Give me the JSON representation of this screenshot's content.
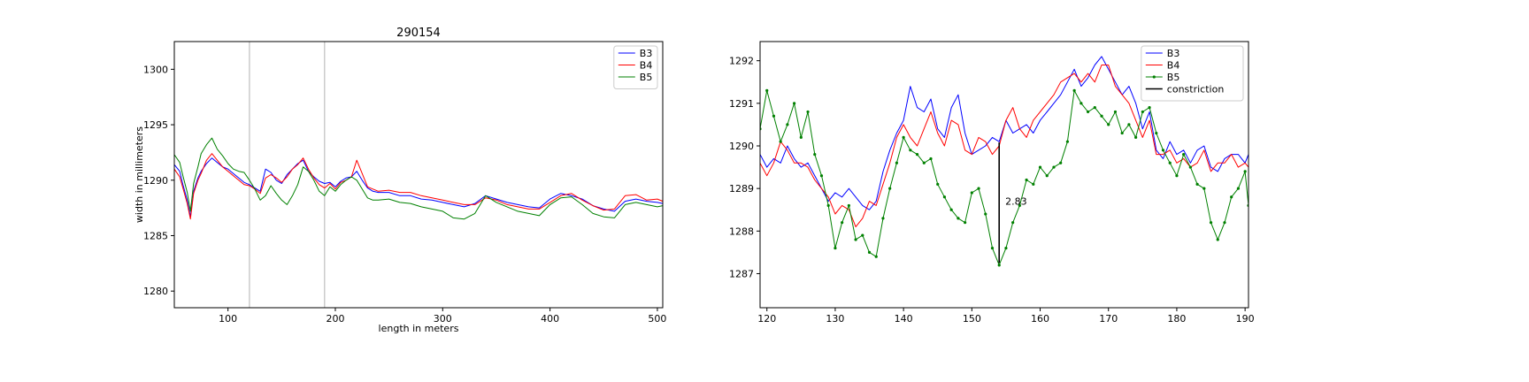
{
  "figure": {
    "background": "#ffffff"
  },
  "chart_data": [
    {
      "type": "line",
      "title": "290154",
      "xlabel": "length in meters",
      "ylabel": "width in millimeters",
      "xlim": [
        50,
        505
      ],
      "ylim": [
        1278.5,
        1302.5
      ],
      "xticks": [
        100,
        200,
        300,
        400,
        500
      ],
      "yticks": [
        1280,
        1285,
        1290,
        1295,
        1300
      ],
      "vlines": [
        {
          "x": 120,
          "color": "#b0b0b0"
        },
        {
          "x": 190,
          "color": "#b0b0b0"
        }
      ],
      "legend": {
        "loc": "upper right"
      },
      "series": [
        {
          "name": "B3",
          "color": "#0000ff",
          "markers": false,
          "x": [
            50,
            55,
            58,
            62,
            65,
            68,
            72,
            75,
            80,
            85,
            90,
            95,
            100,
            105,
            110,
            115,
            120,
            125,
            130,
            135,
            140,
            145,
            150,
            155,
            160,
            165,
            170,
            175,
            180,
            185,
            190,
            195,
            200,
            205,
            210,
            215,
            220,
            225,
            230,
            235,
            240,
            250,
            260,
            270,
            280,
            290,
            300,
            310,
            320,
            330,
            340,
            350,
            360,
            370,
            380,
            390,
            400,
            410,
            420,
            430,
            440,
            450,
            460,
            470,
            480,
            490,
            500,
            505
          ],
          "y": [
            1291.4,
            1290.8,
            1289.6,
            1288.2,
            1286.7,
            1289.0,
            1290.2,
            1290.8,
            1291.5,
            1292.0,
            1291.6,
            1291.2,
            1291.0,
            1290.6,
            1290.2,
            1289.8,
            1289.6,
            1289.3,
            1289.0,
            1291.0,
            1290.7,
            1290.0,
            1289.7,
            1290.5,
            1291.0,
            1291.5,
            1291.8,
            1290.8,
            1290.3,
            1289.9,
            1289.7,
            1289.8,
            1289.4,
            1289.9,
            1290.2,
            1290.3,
            1290.8,
            1290.0,
            1289.3,
            1289.0,
            1288.9,
            1288.9,
            1288.6,
            1288.6,
            1288.3,
            1288.2,
            1288.0,
            1287.8,
            1287.6,
            1287.9,
            1288.6,
            1288.3,
            1288.0,
            1287.8,
            1287.6,
            1287.5,
            1288.3,
            1288.8,
            1288.6,
            1288.3,
            1287.7,
            1287.4,
            1287.2,
            1288.1,
            1288.3,
            1288.1,
            1288.0,
            1287.9
          ]
        },
        {
          "name": "B4",
          "color": "#ff0000",
          "markers": false,
          "x": [
            50,
            55,
            58,
            62,
            65,
            68,
            72,
            75,
            80,
            85,
            90,
            95,
            100,
            105,
            110,
            115,
            120,
            125,
            130,
            135,
            140,
            145,
            150,
            155,
            160,
            165,
            170,
            175,
            180,
            185,
            190,
            195,
            200,
            205,
            210,
            215,
            220,
            225,
            230,
            235,
            240,
            250,
            260,
            270,
            280,
            290,
            300,
            310,
            320,
            330,
            340,
            350,
            360,
            370,
            380,
            390,
            400,
            410,
            420,
            430,
            440,
            450,
            460,
            470,
            480,
            490,
            500,
            505
          ],
          "y": [
            1291.0,
            1290.3,
            1289.3,
            1287.9,
            1286.5,
            1288.8,
            1290.0,
            1290.6,
            1291.8,
            1292.4,
            1291.8,
            1291.2,
            1290.8,
            1290.4,
            1290.0,
            1289.6,
            1289.5,
            1289.2,
            1288.8,
            1290.2,
            1290.5,
            1290.2,
            1289.8,
            1290.3,
            1291.0,
            1291.4,
            1292.0,
            1291.0,
            1290.2,
            1289.6,
            1289.3,
            1289.7,
            1289.2,
            1289.8,
            1290.0,
            1290.3,
            1291.8,
            1290.6,
            1289.4,
            1289.2,
            1289.0,
            1289.1,
            1288.9,
            1288.9,
            1288.6,
            1288.4,
            1288.2,
            1288.0,
            1287.8,
            1287.8,
            1288.4,
            1288.2,
            1287.8,
            1287.6,
            1287.4,
            1287.4,
            1288.0,
            1288.6,
            1288.8,
            1288.2,
            1287.7,
            1287.3,
            1287.4,
            1288.6,
            1288.7,
            1288.2,
            1288.3,
            1288.1
          ]
        },
        {
          "name": "B5",
          "color": "#008000",
          "markers": false,
          "x": [
            50,
            55,
            58,
            62,
            65,
            68,
            72,
            75,
            80,
            85,
            90,
            95,
            100,
            105,
            110,
            115,
            120,
            125,
            130,
            135,
            140,
            145,
            150,
            155,
            160,
            165,
            170,
            175,
            180,
            185,
            190,
            195,
            200,
            205,
            210,
            215,
            220,
            225,
            230,
            235,
            240,
            250,
            260,
            270,
            280,
            290,
            300,
            310,
            320,
            330,
            340,
            350,
            360,
            370,
            380,
            390,
            400,
            410,
            420,
            430,
            440,
            450,
            460,
            470,
            480,
            490,
            500,
            505
          ],
          "y": [
            1292.3,
            1291.6,
            1290.4,
            1288.9,
            1287.2,
            1289.7,
            1291.2,
            1292.4,
            1293.2,
            1293.8,
            1292.8,
            1292.2,
            1291.5,
            1291.0,
            1290.8,
            1290.7,
            1290.0,
            1289.2,
            1288.2,
            1288.6,
            1289.5,
            1288.8,
            1288.2,
            1287.8,
            1288.6,
            1289.6,
            1291.2,
            1290.8,
            1290.0,
            1289.0,
            1288.6,
            1289.4,
            1289.0,
            1289.6,
            1290.0,
            1290.3,
            1290.0,
            1289.2,
            1288.4,
            1288.2,
            1288.2,
            1288.3,
            1288.0,
            1287.9,
            1287.6,
            1287.4,
            1287.2,
            1286.6,
            1286.5,
            1287.0,
            1288.6,
            1288.0,
            1287.6,
            1287.2,
            1287.0,
            1286.8,
            1287.8,
            1288.4,
            1288.5,
            1287.8,
            1287.0,
            1286.7,
            1286.6,
            1287.8,
            1288.0,
            1287.8,
            1287.6,
            1287.7
          ]
        }
      ]
    },
    {
      "type": "line",
      "title": "",
      "xlabel": "",
      "ylabel": "",
      "xlim": [
        119,
        190.5
      ],
      "ylim": [
        1286.2,
        1292.45
      ],
      "xticks": [
        120,
        130,
        140,
        150,
        160,
        170,
        180,
        190
      ],
      "yticks": [
        1287,
        1288,
        1289,
        1290,
        1291,
        1292
      ],
      "legend": {
        "loc": "upper right"
      },
      "series": [
        {
          "name": "B3",
          "color": "#0000ff",
          "markers": false,
          "x": [
            119,
            120,
            121,
            122,
            123,
            124,
            125,
            126,
            127,
            128,
            129,
            130,
            131,
            132,
            133,
            134,
            135,
            136,
            137,
            138,
            139,
            140,
            141,
            142,
            143,
            144,
            145,
            146,
            147,
            148,
            149,
            150,
            151,
            152,
            153,
            154,
            155,
            156,
            157,
            158,
            159,
            160,
            161,
            162,
            163,
            164,
            165,
            166,
            167,
            168,
            169,
            170,
            171,
            172,
            173,
            174,
            175,
            176,
            177,
            178,
            179,
            180,
            181,
            182,
            183,
            184,
            185,
            186,
            187,
            188,
            189,
            190,
            190.5
          ],
          "y": [
            1289.8,
            1289.5,
            1289.7,
            1289.6,
            1290.0,
            1289.7,
            1289.5,
            1289.6,
            1289.3,
            1289.0,
            1288.7,
            1288.9,
            1288.8,
            1289.0,
            1288.8,
            1288.6,
            1288.5,
            1288.7,
            1289.4,
            1289.9,
            1290.3,
            1290.6,
            1291.4,
            1290.9,
            1290.8,
            1291.1,
            1290.4,
            1290.2,
            1290.9,
            1291.2,
            1290.3,
            1289.8,
            1289.9,
            1290.0,
            1290.2,
            1290.1,
            1290.6,
            1290.3,
            1290.4,
            1290.5,
            1290.3,
            1290.6,
            1290.8,
            1291.0,
            1291.2,
            1291.5,
            1291.8,
            1291.4,
            1291.6,
            1291.9,
            1292.1,
            1291.8,
            1291.5,
            1291.2,
            1291.4,
            1291.0,
            1290.4,
            1290.8,
            1289.9,
            1289.7,
            1290.1,
            1289.8,
            1289.9,
            1289.6,
            1289.9,
            1290.0,
            1289.5,
            1289.4,
            1289.7,
            1289.8,
            1289.8,
            1289.6,
            1289.8
          ]
        },
        {
          "name": "B4",
          "color": "#ff0000",
          "markers": false,
          "x": [
            119,
            120,
            121,
            122,
            123,
            124,
            125,
            126,
            127,
            128,
            129,
            130,
            131,
            132,
            133,
            134,
            135,
            136,
            137,
            138,
            139,
            140,
            141,
            142,
            143,
            144,
            145,
            146,
            147,
            148,
            149,
            150,
            151,
            152,
            153,
            154,
            155,
            156,
            157,
            158,
            159,
            160,
            161,
            162,
            163,
            164,
            165,
            166,
            167,
            168,
            169,
            170,
            171,
            172,
            173,
            174,
            175,
            176,
            177,
            178,
            179,
            180,
            181,
            182,
            183,
            184,
            185,
            186,
            187,
            188,
            189,
            190,
            190.5
          ],
          "y": [
            1289.6,
            1289.3,
            1289.6,
            1290.1,
            1289.9,
            1289.6,
            1289.6,
            1289.5,
            1289.2,
            1289.0,
            1288.8,
            1288.4,
            1288.6,
            1288.5,
            1288.1,
            1288.3,
            1288.7,
            1288.6,
            1289.1,
            1289.6,
            1290.2,
            1290.5,
            1290.2,
            1290.0,
            1290.4,
            1290.8,
            1290.3,
            1290.0,
            1290.6,
            1290.5,
            1289.9,
            1289.8,
            1290.2,
            1290.1,
            1289.8,
            1290.0,
            1290.6,
            1290.9,
            1290.4,
            1290.2,
            1290.6,
            1290.8,
            1291.0,
            1291.2,
            1291.5,
            1291.6,
            1291.7,
            1291.5,
            1291.7,
            1291.5,
            1291.9,
            1291.9,
            1291.4,
            1291.2,
            1291.0,
            1290.6,
            1290.2,
            1290.6,
            1289.8,
            1289.8,
            1289.9,
            1289.6,
            1289.7,
            1289.5,
            1289.6,
            1289.9,
            1289.4,
            1289.6,
            1289.6,
            1289.8,
            1289.5,
            1289.6,
            1289.5
          ]
        },
        {
          "name": "B5",
          "color": "#008000",
          "markers": true,
          "x": [
            119,
            120,
            121,
            122,
            123,
            124,
            125,
            126,
            127,
            128,
            129,
            130,
            131,
            132,
            133,
            134,
            135,
            136,
            137,
            138,
            139,
            140,
            141,
            142,
            143,
            144,
            145,
            146,
            147,
            148,
            149,
            150,
            151,
            152,
            153,
            154,
            155,
            156,
            157,
            158,
            159,
            160,
            161,
            162,
            163,
            164,
            165,
            166,
            167,
            168,
            169,
            170,
            171,
            172,
            173,
            174,
            175,
            176,
            177,
            178,
            179,
            180,
            181,
            182,
            183,
            184,
            185,
            186,
            187,
            188,
            189,
            190,
            190.5
          ],
          "y": [
            1290.4,
            1291.3,
            1290.7,
            1290.1,
            1290.5,
            1291.0,
            1290.2,
            1290.8,
            1289.8,
            1289.3,
            1288.6,
            1287.6,
            1288.2,
            1288.6,
            1287.8,
            1287.9,
            1287.5,
            1287.4,
            1288.3,
            1289.0,
            1289.6,
            1290.2,
            1289.9,
            1289.8,
            1289.6,
            1289.7,
            1289.1,
            1288.8,
            1288.5,
            1288.3,
            1288.2,
            1288.9,
            1289.0,
            1288.4,
            1287.6,
            1287.2,
            1287.6,
            1288.2,
            1288.6,
            1289.2,
            1289.1,
            1289.5,
            1289.3,
            1289.5,
            1289.6,
            1290.1,
            1291.3,
            1291.0,
            1290.8,
            1290.9,
            1290.7,
            1290.5,
            1290.8,
            1290.3,
            1290.5,
            1290.2,
            1290.8,
            1290.9,
            1290.3,
            1289.9,
            1289.6,
            1289.3,
            1289.8,
            1289.5,
            1289.1,
            1289.0,
            1288.2,
            1287.8,
            1288.2,
            1288.8,
            1289.0,
            1289.4,
            1288.6
          ]
        },
        {
          "name": "constriction",
          "color": "#000000",
          "markers": false,
          "x": [
            154,
            154
          ],
          "y": [
            1287.25,
            1290.08
          ]
        }
      ],
      "annotations": [
        {
          "text": "2.83",
          "x": 154.9,
          "y": 1288.7
        }
      ]
    }
  ]
}
